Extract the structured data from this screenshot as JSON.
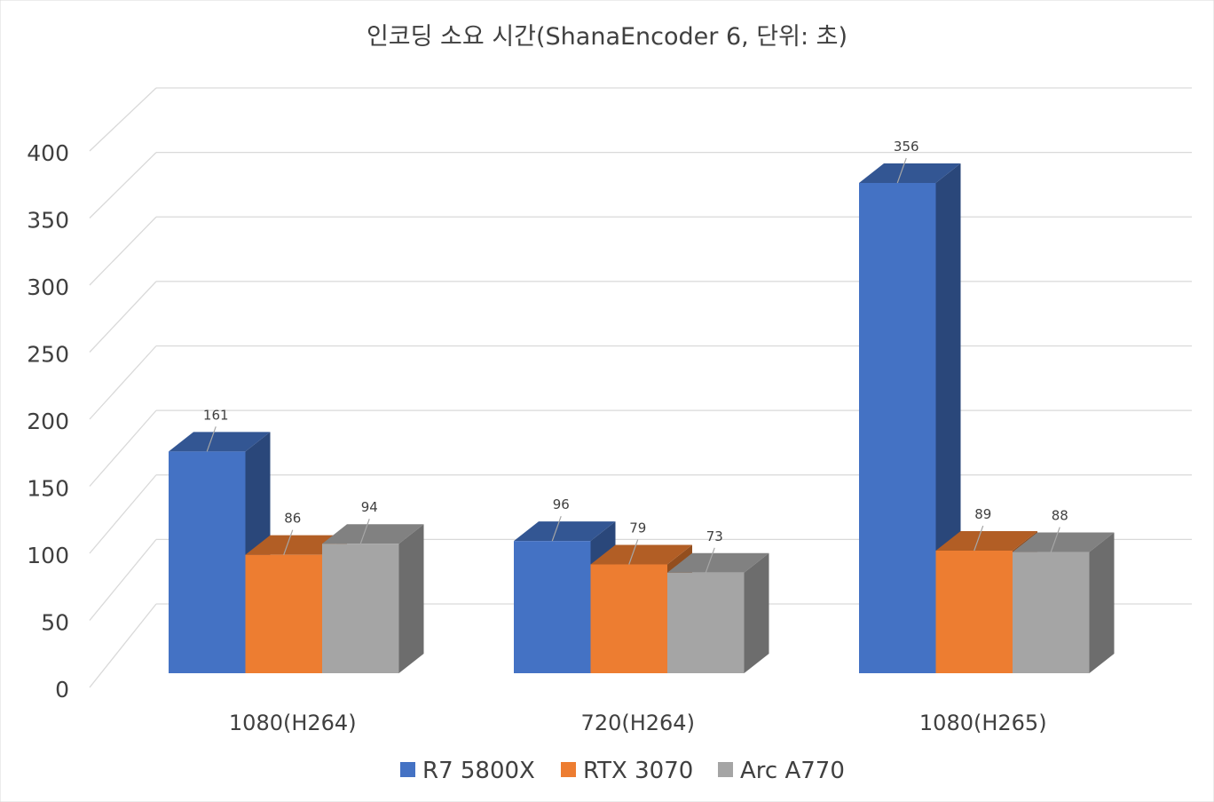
{
  "chart_data": {
    "type": "bar",
    "title": "인코딩 소요 시간(ShanaEncoder 6, 단위: 초)",
    "xlabel": "",
    "ylabel": "",
    "categories": [
      "1080(H264)",
      "720(H264)",
      "1080(H265)"
    ],
    "series": [
      {
        "name": "R7 5800X",
        "values": [
          161,
          96,
          356
        ],
        "color": "#4472C4"
      },
      {
        "name": "RTX 3070",
        "values": [
          86,
          79,
          89
        ],
        "color": "#ED7D31"
      },
      {
        "name": "Arc A770",
        "values": [
          94,
          73,
          88
        ],
        "color": "#A5A5A5"
      }
    ],
    "yticks": [
      "0",
      "50",
      "100",
      "150",
      "200",
      "250",
      "300",
      "350",
      "400"
    ],
    "ylim": [
      0,
      400
    ],
    "grid": true,
    "legend": "bottom",
    "style": "3d-clustered"
  }
}
